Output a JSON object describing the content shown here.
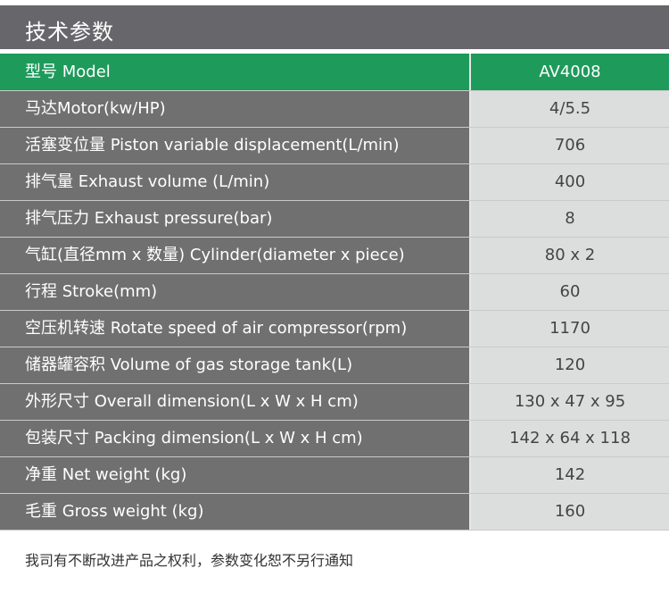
{
  "title": "技术参数",
  "header": {
    "label": "型号 Model",
    "value": "AV4008"
  },
  "rows": [
    {
      "label": "马达Motor(kw/HP)",
      "value": "4/5.5"
    },
    {
      "label": "活塞变位量 Piston variable displacement(L/min)",
      "value": "706"
    },
    {
      "label": "排气量 Exhaust volume (L/min)",
      "value": "400"
    },
    {
      "label": "排气压力 Exhaust pressure(bar)",
      "value": "8"
    },
    {
      "label": "气缸(直径mm x 数量) Cylinder(diameter x piece)",
      "value": "80 x 2"
    },
    {
      "label": "行程 Stroke(mm)",
      "value": "60"
    },
    {
      "label": "空压机转速 Rotate speed of air compressor(rpm)",
      "value": "1170"
    },
    {
      "label": "储器罐容积 Volume of gas storage tank(L)",
      "value": "120"
    },
    {
      "label": "外形尺寸 Overall dimension(L x W x H cm)",
      "value": "130 x 47 x 95"
    },
    {
      "label": "包装尺寸 Packing dimension(L x W x H cm)",
      "value": "142 x 64 x 118"
    },
    {
      "label": "净重 Net weight (kg)",
      "value": "142"
    },
    {
      "label": "毛重 Gross weight (kg)",
      "value": "160"
    }
  ],
  "note": "我司有不断改进产品之权利，参数变化恕不另行通知",
  "colors": {
    "title_bg": "#67666b",
    "header_green": "#1e9a5b",
    "label_bg": "#717071",
    "value_bg": "#dcdddd"
  }
}
